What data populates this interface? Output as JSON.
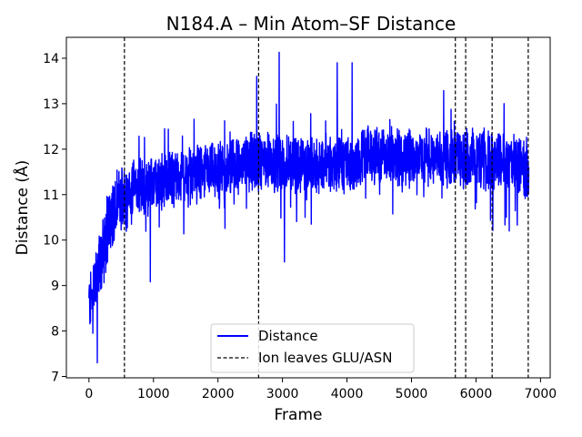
{
  "chart_data": {
    "type": "line",
    "title": "N184.A – Min Atom–SF Distance",
    "xlabel": "Frame",
    "ylabel": "Distance (Å)",
    "xlim": [
      -350,
      7150
    ],
    "ylim": [
      6.97,
      14.46
    ],
    "x_ticks": [
      0,
      1000,
      2000,
      3000,
      4000,
      5000,
      6000,
      7000
    ],
    "x_tick_labels": [
      "0",
      "1000",
      "2000",
      "3000",
      "4000",
      "5000",
      "6000",
      "7000"
    ],
    "y_ticks": [
      7,
      8,
      9,
      10,
      11,
      12,
      13,
      14
    ],
    "y_tick_labels": [
      "7",
      "8",
      "9",
      "10",
      "11",
      "12",
      "13",
      "14"
    ],
    "grid": false,
    "legend_position": "bottom-center",
    "series": [
      {
        "name": "Distance",
        "color": "#0000ff",
        "style": "solid",
        "n_frames": 6820,
        "trend": [
          {
            "x": 0,
            "y": 8.6
          },
          {
            "x": 100,
            "y": 9.0
          },
          {
            "x": 200,
            "y": 9.6
          },
          {
            "x": 300,
            "y": 10.3
          },
          {
            "x": 400,
            "y": 10.7
          },
          {
            "x": 500,
            "y": 10.9
          },
          {
            "x": 700,
            "y": 11.1
          },
          {
            "x": 1000,
            "y": 11.2
          },
          {
            "x": 1500,
            "y": 11.4
          },
          {
            "x": 2000,
            "y": 11.5
          },
          {
            "x": 2500,
            "y": 11.7
          },
          {
            "x": 3000,
            "y": 11.7
          },
          {
            "x": 3500,
            "y": 11.6
          },
          {
            "x": 4000,
            "y": 11.7
          },
          {
            "x": 4500,
            "y": 11.9
          },
          {
            "x": 5000,
            "y": 11.8
          },
          {
            "x": 5500,
            "y": 11.8
          },
          {
            "x": 6000,
            "y": 11.8
          },
          {
            "x": 6500,
            "y": 11.7
          },
          {
            "x": 6820,
            "y": 11.6
          }
        ],
        "noise_amplitude": 0.55,
        "notable_points": [
          {
            "x": 130,
            "y": 7.3
          },
          {
            "x": 60,
            "y": 7.95
          },
          {
            "x": 950,
            "y": 9.08
          },
          {
            "x": 3030,
            "y": 9.52
          },
          {
            "x": 2950,
            "y": 14.13
          },
          {
            "x": 2600,
            "y": 13.6
          },
          {
            "x": 4080,
            "y": 13.9
          },
          {
            "x": 3850,
            "y": 13.9
          }
        ]
      },
      {
        "name": "Ion leaves GLU/ASN",
        "color": "#000000",
        "style": "dashed",
        "vlines": [
          550,
          2630,
          5680,
          5840,
          6250,
          6810
        ]
      }
    ]
  }
}
